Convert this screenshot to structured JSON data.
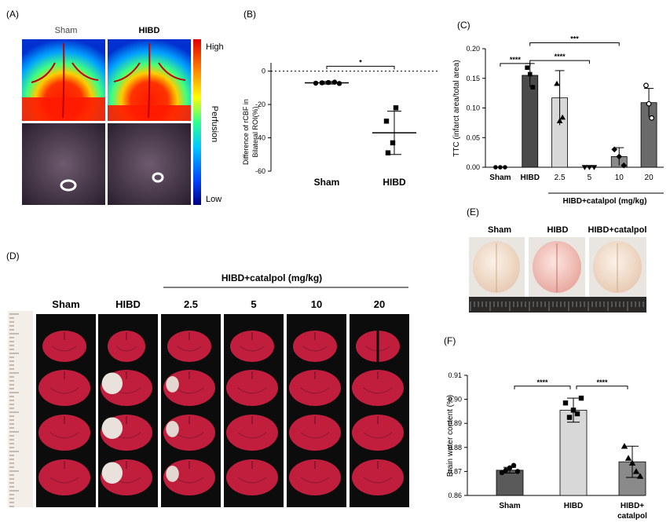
{
  "panels": {
    "a": {
      "letter": "(A)",
      "col_labels": [
        "Sham",
        "HIBD"
      ],
      "colorbar": {
        "high": "High",
        "title": "Perfusion",
        "low": "Low",
        "colors": [
          "#000080",
          "#0044ff",
          "#00c8ff",
          "#30ff90",
          "#ffff00",
          "#ff8000",
          "#e00000"
        ]
      }
    },
    "d": {
      "letter": "(D)",
      "group_label": "HIBD+catalpol (mg/kg)",
      "col_labels": [
        "Sham",
        "HIBD",
        "2.5",
        "5",
        "10",
        "20"
      ],
      "slice_color": "#c01e3c"
    },
    "e": {
      "letter": "(E)",
      "col_labels": [
        "Sham",
        "HIBD",
        "HIBD+catalpol"
      ]
    }
  },
  "chart_data": [
    {
      "panel": "B",
      "letter": "(B)",
      "type": "scatter",
      "title": "",
      "xlabel": "",
      "ylabel": "Difference of rCBF in Bilateral ROI(%)",
      "ylabel_lines": [
        "Difference of rCBF in",
        "Bilateral ROI(%)"
      ],
      "categories": [
        "Sham",
        "HIBD"
      ],
      "ylim": [
        -60,
        5
      ],
      "yticks": [
        0,
        -20,
        -40,
        -60
      ],
      "yticklabels": [
        "0",
        "-20",
        "-40",
        "-60"
      ],
      "reference_line": 0,
      "means": [
        -7,
        -37
      ],
      "sd": [
        0.8,
        13
      ],
      "points": [
        [
          -7.2,
          -7.0,
          -6.8,
          -6.6,
          -7.4
        ],
        [
          -22,
          -30,
          -43,
          -49
        ]
      ],
      "significance": [
        {
          "from": 0,
          "to": 1,
          "label": "*",
          "y": 2
        }
      ]
    },
    {
      "panel": "C",
      "letter": "(C)",
      "type": "bar",
      "title": "",
      "xlabel": "HIBD+catalpol (mg/kg)",
      "ylabel": "TTC (infarct area/total area)",
      "categories": [
        "Sham",
        "HIBD",
        "2.5",
        "5",
        "10",
        "20"
      ],
      "values": [
        0.0,
        0.155,
        0.117,
        0.0,
        0.018,
        0.109
      ],
      "sd": [
        0,
        0.02,
        0.046,
        0,
        0.015,
        0.024
      ],
      "points": [
        [
          0,
          0,
          0
        ],
        [
          0.168,
          0.157,
          0.135
        ],
        [
          0.141,
          0.078,
          0.084
        ],
        [
          0,
          0,
          0
        ],
        [
          0.03,
          0.018,
          0.003
        ],
        [
          0.138,
          0.107,
          0.083
        ]
      ],
      "markers": [
        "circle",
        "square",
        "triangle",
        "triangle-down",
        "diamond",
        "open-circle"
      ],
      "colors": [
        "#222222",
        "#4a4a4a",
        "#d8d8d8",
        "#222222",
        "#8a8a8a",
        "#6a6a6a"
      ],
      "ylim": [
        0,
        0.2
      ],
      "yticks": [
        0,
        0.05,
        0.1,
        0.15,
        0.2
      ],
      "yticklabels": [
        "0.00",
        "0.05",
        "0.10",
        "0.15",
        "0.20"
      ],
      "significance": [
        {
          "from": 0,
          "to": 1,
          "label": "****",
          "y": 0.175
        },
        {
          "from": 1,
          "to": 3,
          "label": "****",
          "y": 0.18
        },
        {
          "from": 1,
          "to": 4,
          "label": "***",
          "y": 0.21
        }
      ]
    },
    {
      "panel": "F",
      "letter": "(F)",
      "type": "bar",
      "title": "",
      "xlabel": "",
      "ylabel": "Brain water content (%)",
      "categories": [
        "Sham",
        "HIBD",
        "HIBD+\ncatalpol"
      ],
      "category_lines": [
        [
          "Sham"
        ],
        [
          "HIBD"
        ],
        [
          "HIBD+",
          "catalpol"
        ]
      ],
      "values": [
        0.8705,
        0.8955,
        0.874
      ],
      "sd": [
        0.0012,
        0.005,
        0.0065
      ],
      "points": [
        [
          0.8695,
          0.8705,
          0.8715,
          0.8725,
          0.87
        ],
        [
          0.8985,
          0.8925,
          0.8955,
          0.894,
          0.9005
        ],
        [
          0.8805,
          0.8755,
          0.8735,
          0.87,
          0.868
        ]
      ],
      "markers": [
        "circle",
        "square",
        "triangle"
      ],
      "colors": [
        "#5a5a5a",
        "#d8d8d8",
        "#8a8a8a"
      ],
      "ylim": [
        0.86,
        0.91
      ],
      "yticks": [
        0.86,
        0.87,
        0.88,
        0.89,
        0.9,
        0.91
      ],
      "yticklabels": [
        "0.86",
        "0.87",
        "0.88",
        "0.89",
        "0.90",
        "0.91"
      ],
      "significance": [
        {
          "from": 0,
          "to": 1,
          "label": "****",
          "y": 0.9055
        },
        {
          "from": 1,
          "to": 2,
          "label": "****",
          "y": 0.9055
        }
      ]
    }
  ]
}
